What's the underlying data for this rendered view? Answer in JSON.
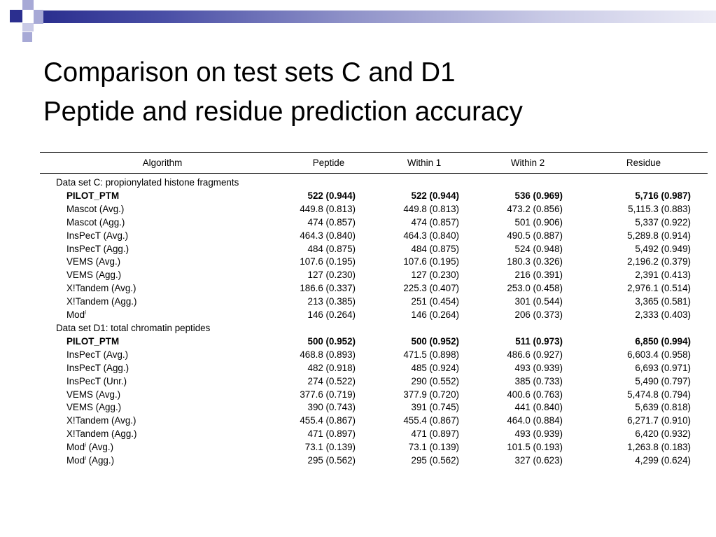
{
  "header": {
    "accent_dark": "#2b2f8f",
    "accent_light": "#a7a9d6",
    "title_lines": [
      "Comparison on test sets C and D1",
      "Peptide and residue prediction accuracy"
    ]
  },
  "table": {
    "columns": [
      "Algorithm",
      "Peptide",
      "Within 1",
      "Within 2",
      "Residue"
    ],
    "sections": [
      {
        "label": "Data set C: propionylated histone fragments",
        "rows": [
          {
            "algorithm": "PILOT_PTM",
            "bold": true,
            "cells": [
              "522 (0.944)",
              "522 (0.944)",
              "536 (0.969)",
              "5,716 (0.987)"
            ]
          },
          {
            "algorithm": "Mascot (Avg.)",
            "cells": [
              "449.8 (0.813)",
              "449.8 (0.813)",
              "473.2 (0.856)",
              "5,115.3 (0.883)"
            ]
          },
          {
            "algorithm": "Mascot (Agg.)",
            "cells": [
              "474 (0.857)",
              "474 (0.857)",
              "501 (0.906)",
              "5,337 (0.922)"
            ]
          },
          {
            "algorithm": "InsPecT (Avg.)",
            "cells": [
              "464.3 (0.840)",
              "464.3 (0.840)",
              "490.5 (0.887)",
              "5,289.8 (0.914)"
            ]
          },
          {
            "algorithm": "InsPecT (Agg.)",
            "cells": [
              "484 (0.875)",
              "484 (0.875)",
              "524 (0.948)",
              "5,492 (0.949)"
            ]
          },
          {
            "algorithm": "VEMS (Avg.)",
            "cells": [
              "107.6 (0.195)",
              "107.6 (0.195)",
              "180.3 (0.326)",
              "2,196.2 (0.379)"
            ]
          },
          {
            "algorithm": "VEMS (Agg.)",
            "cells": [
              "127 (0.230)",
              "127 (0.230)",
              "216 (0.391)",
              "2,391 (0.413)"
            ]
          },
          {
            "algorithm": "X!Tandem (Avg.)",
            "cells": [
              "186.6 (0.337)",
              "225.3 (0.407)",
              "253.0 (0.458)",
              "2,976.1 (0.514)"
            ]
          },
          {
            "algorithm": "X!Tandem (Agg.)",
            "cells": [
              "213 (0.385)",
              "251 (0.454)",
              "301 (0.544)",
              "3,365 (0.581)"
            ]
          },
          {
            "algorithm": "Mod",
            "sup": "i",
            "suffix": "",
            "cells": [
              "146 (0.264)",
              "146 (0.264)",
              "206 (0.373)",
              "2,333 (0.403)"
            ]
          }
        ]
      },
      {
        "label": "Data set D1: total chromatin peptides",
        "rows": [
          {
            "algorithm": "PILOT_PTM",
            "bold": true,
            "cells": [
              "500 (0.952)",
              "500 (0.952)",
              "511 (0.973)",
              "6,850 (0.994)"
            ]
          },
          {
            "algorithm": "InsPecT (Avg.)",
            "cells": [
              "468.8 (0.893)",
              "471.5 (0.898)",
              "486.6 (0.927)",
              "6,603.4 (0.958)"
            ]
          },
          {
            "algorithm": "InsPecT (Agg.)",
            "cells": [
              "482 (0.918)",
              "485 (0.924)",
              "493 (0.939)",
              "6,693 (0.971)"
            ]
          },
          {
            "algorithm": "InsPecT (Unr.)",
            "cells": [
              "274 (0.522)",
              "290 (0.552)",
              "385 (0.733)",
              "5,490 (0.797)"
            ]
          },
          {
            "algorithm": "VEMS (Avg.)",
            "cells": [
              "377.6 (0.719)",
              "377.9 (0.720)",
              "400.6 (0.763)",
              "5,474.8 (0.794)"
            ]
          },
          {
            "algorithm": "VEMS (Agg.)",
            "cells": [
              "390 (0.743)",
              "391 (0.745)",
              "441 (0.840)",
              "5,639 (0.818)"
            ]
          },
          {
            "algorithm": "X!Tandem (Avg.)",
            "cells": [
              "455.4 (0.867)",
              "455.4 (0.867)",
              "464.0 (0.884)",
              "6,271.7 (0.910)"
            ]
          },
          {
            "algorithm": "X!Tandem (Agg.)",
            "cells": [
              "471 (0.897)",
              "471 (0.897)",
              "493 (0.939)",
              "6,420 (0.932)"
            ]
          },
          {
            "algorithm": "Mod",
            "sup": "i",
            "suffix": " (Avg.)",
            "cells": [
              "73.1 (0.139)",
              "73.1 (0.139)",
              "101.5 (0.193)",
              "1,263.8 (0.183)"
            ]
          },
          {
            "algorithm": "Mod",
            "sup": "i",
            "suffix": " (Agg.)",
            "cells": [
              "295 (0.562)",
              "295 (0.562)",
              "327 (0.623)",
              "4,299 (0.624)"
            ]
          }
        ]
      }
    ]
  }
}
